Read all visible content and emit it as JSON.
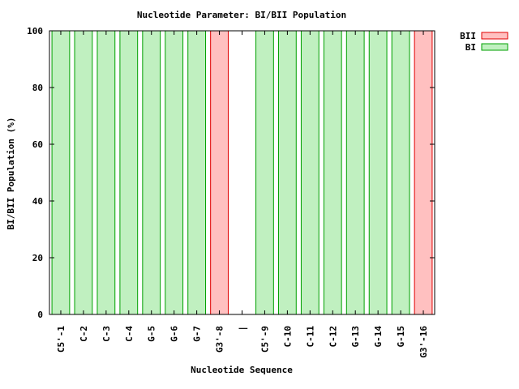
{
  "chart_data": {
    "type": "bar",
    "title": "Nucleotide Parameter: BI/BII Population",
    "xlabel": "Nucleotide Sequence",
    "ylabel": "BI/BII Population (%)",
    "ylim": [
      0,
      100
    ],
    "yticks": [
      0,
      20,
      40,
      60,
      80,
      100
    ],
    "grid": false,
    "legend_position": "top-right outside",
    "categories": [
      "C5'-1",
      "C-2",
      "C-3",
      "C-4",
      "G-5",
      "G-6",
      "G-7",
      "G3'-8",
      "|",
      "C5'-9",
      "C-10",
      "C-11",
      "C-12",
      "G-13",
      "G-14",
      "G-15",
      "G3'-16"
    ],
    "series": [
      {
        "name": "BII",
        "color": "#ffc0c0",
        "edge_color": "#e00000",
        "values": [
          0,
          0,
          0,
          0,
          0,
          0,
          0,
          100,
          null,
          0,
          0,
          0,
          0,
          0,
          0,
          0,
          100
        ]
      },
      {
        "name": "BI",
        "color": "#c0f0c0",
        "edge_color": "#00a000",
        "values": [
          100,
          100,
          100,
          100,
          100,
          100,
          100,
          0,
          null,
          100,
          100,
          100,
          100,
          100,
          100,
          100,
          0
        ]
      }
    ],
    "legend_order": [
      "BII",
      "BI"
    ]
  }
}
